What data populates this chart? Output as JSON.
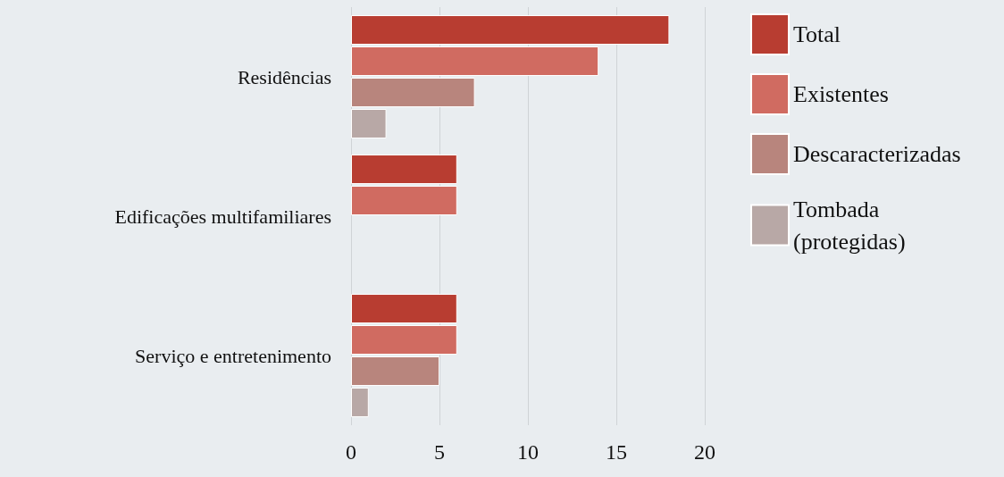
{
  "chart_data": {
    "type": "bar",
    "orientation": "horizontal",
    "categories": [
      "Residências",
      "Edificações multifamiliares",
      "Serviço e entretenimento"
    ],
    "series": [
      {
        "name": "Total",
        "color": "#b83d31",
        "values": [
          18,
          6,
          6
        ]
      },
      {
        "name": "Existentes",
        "color": "#d06b61",
        "values": [
          14,
          6,
          6
        ]
      },
      {
        "name": "Descaracterizadas",
        "color": "#b8857d",
        "values": [
          7,
          null,
          5
        ]
      },
      {
        "name": "Tombada\n(protegidas)",
        "color": "#b8a8a6",
        "values": [
          2,
          null,
          1
        ]
      }
    ],
    "xlim": [
      0,
      20
    ],
    "xticks": [
      0,
      5,
      10,
      15,
      20
    ],
    "grid": "x",
    "legend": "right"
  }
}
